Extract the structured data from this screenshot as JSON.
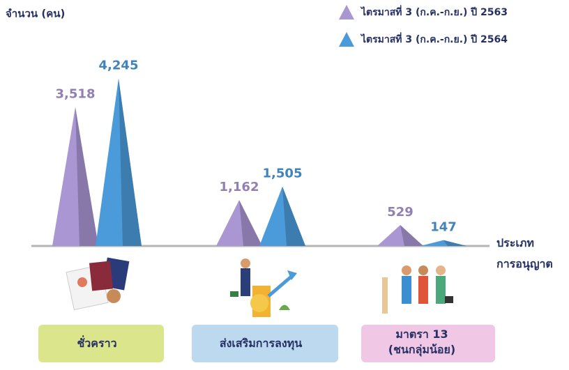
{
  "chart_data": {
    "type": "pyramid",
    "y_label": "จำนวน (คน)",
    "x_label": "ประเภท\nการอนุญาต",
    "categories": [
      "ชั่วคราว",
      "ส่งเสริมการลงทุน",
      "มาตรา 13\n(ชนกลุ่มน้อย)"
    ],
    "ylim": [
      0,
      4500
    ],
    "series": [
      {
        "name": "ไตรมาสที่ 3 (ก.ค.-ก.ย.) ปี 2563",
        "color": "#a996d3",
        "values": [
          3518,
          1162,
          529
        ],
        "value_labels": [
          "3,518",
          "1,162",
          "529"
        ]
      },
      {
        "name": "ไตรมาสที่ 3 (ก.ค.-ก.ย.) ปี 2564",
        "color": "#4b9bdb",
        "values": [
          4245,
          1505,
          147
        ],
        "value_labels": [
          "4,245",
          "1,505",
          "147"
        ]
      }
    ]
  }
}
